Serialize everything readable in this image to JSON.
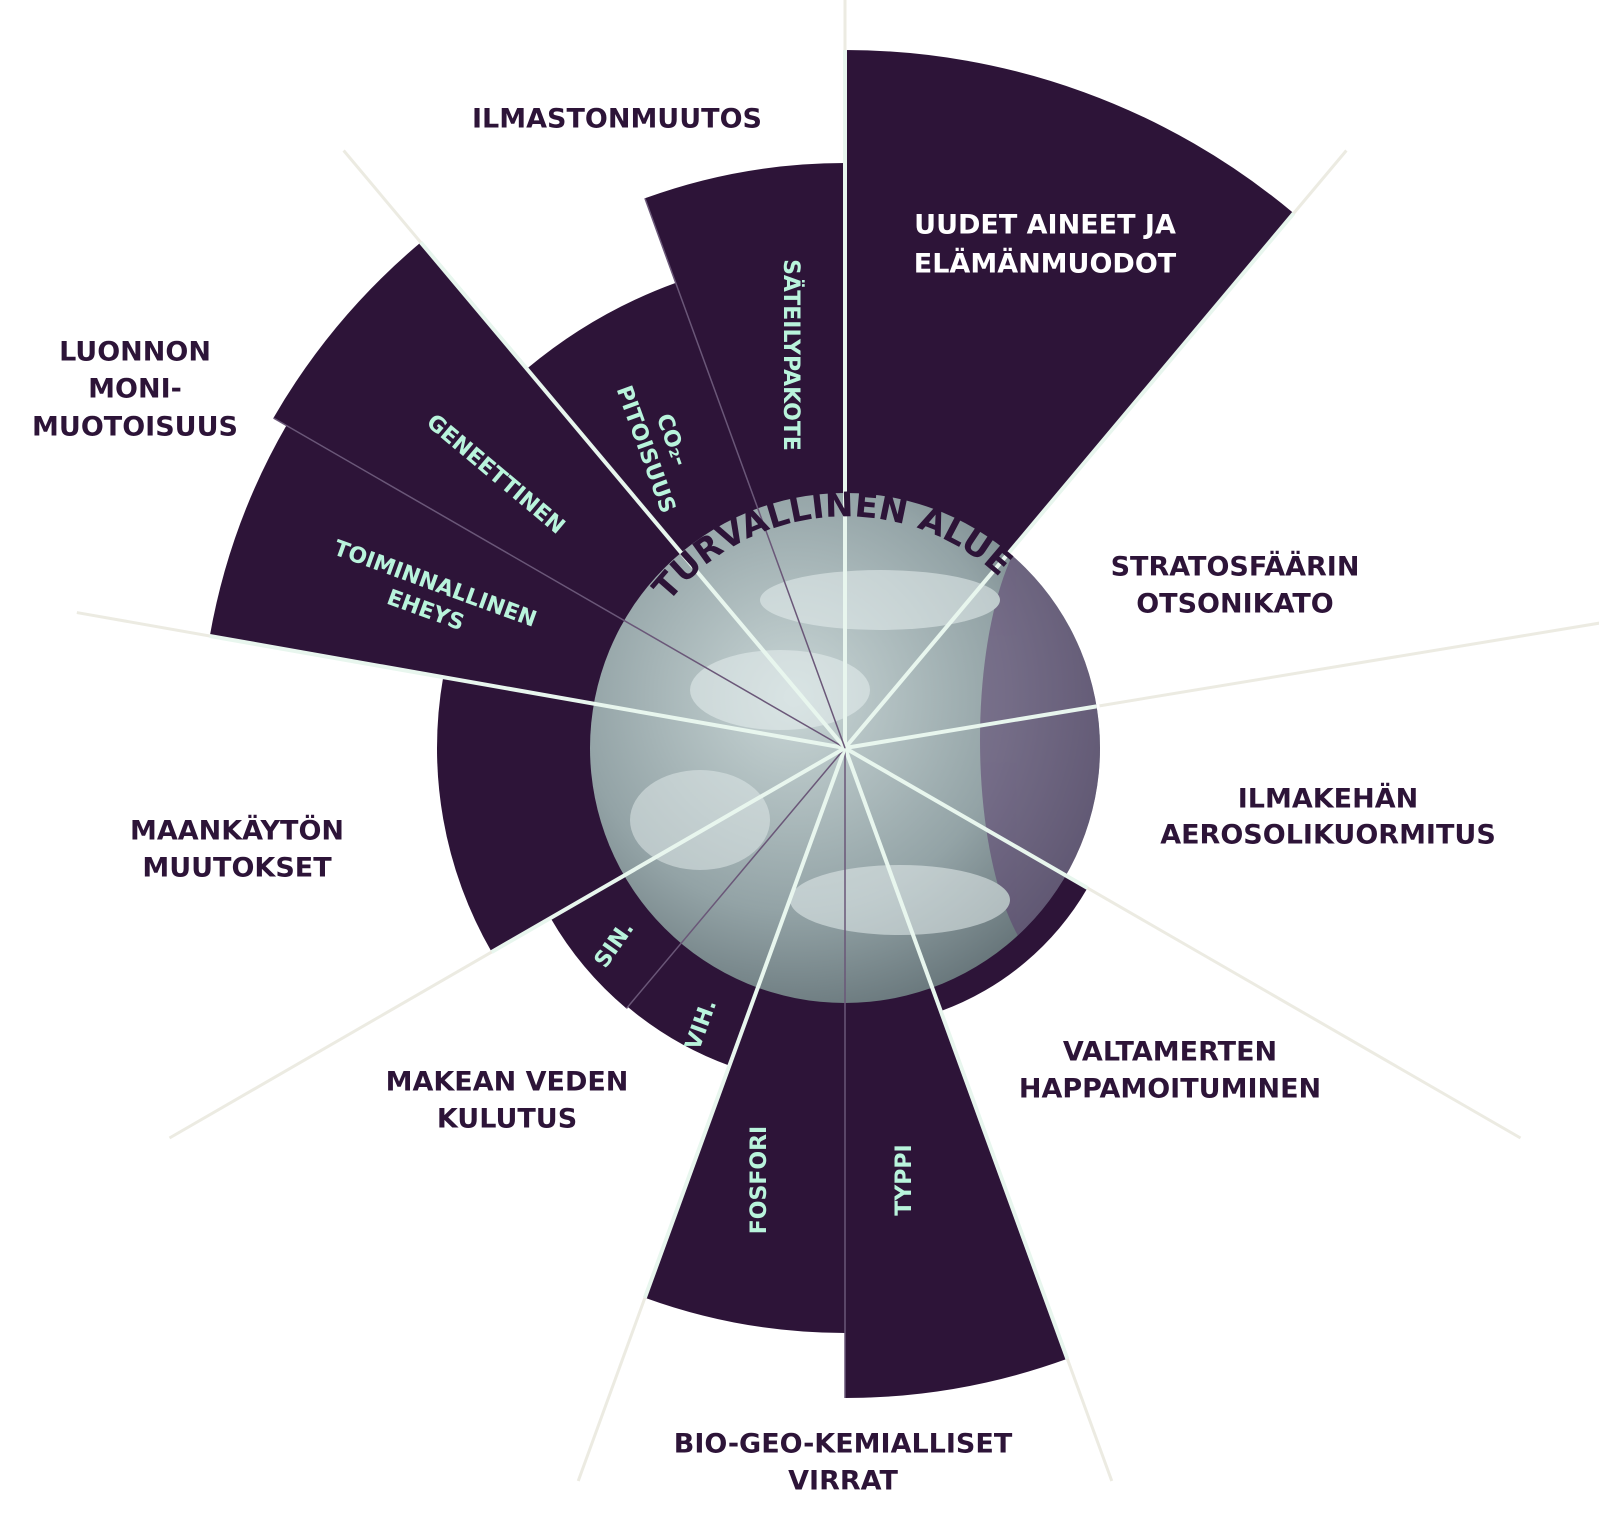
{
  "center_label": "TURVALLINEN ALUE",
  "boundaries": [
    {
      "label": [
        "ILMASTONMUUTOS"
      ],
      "sub": [
        [
          "CO₂-",
          "PITOISUUS"
        ],
        [
          "SÄTEILYPAKOTE"
        ]
      ]
    },
    {
      "label": [
        "UUDET AINEET JA",
        "ELÄMÄNMUODOT"
      ]
    },
    {
      "label": [
        "STRATOSFÄÄRIN",
        "OTSONIKATO"
      ]
    },
    {
      "label": [
        "ILMAKEHÄN",
        "AEROSOLIKUORMITUS"
      ]
    },
    {
      "label": [
        "VALTAMERTEN",
        "HAPPAMOITUMINEN"
      ]
    },
    {
      "label": [
        "BIO-GEO-KEMIALLISET",
        "VIRRAT"
      ],
      "sub": [
        [
          "TYPPI"
        ],
        [
          "FOSFORI"
        ]
      ]
    },
    {
      "label": [
        "MAKEAN VEDEN",
        "KULUTUS"
      ],
      "sub": [
        [
          "VIH."
        ],
        [
          "SIN."
        ]
      ]
    },
    {
      "label": [
        "MAANKÄYTÖN",
        "MUUTOKSET"
      ]
    },
    {
      "label": [
        "LUONNON",
        "MONI-",
        "MUOTOISUUS"
      ],
      "sub": [
        [
          "TOIMINNALLINEN",
          "EHEYS"
        ],
        [
          "GENEETTINEN"
        ]
      ]
    }
  ]
}
